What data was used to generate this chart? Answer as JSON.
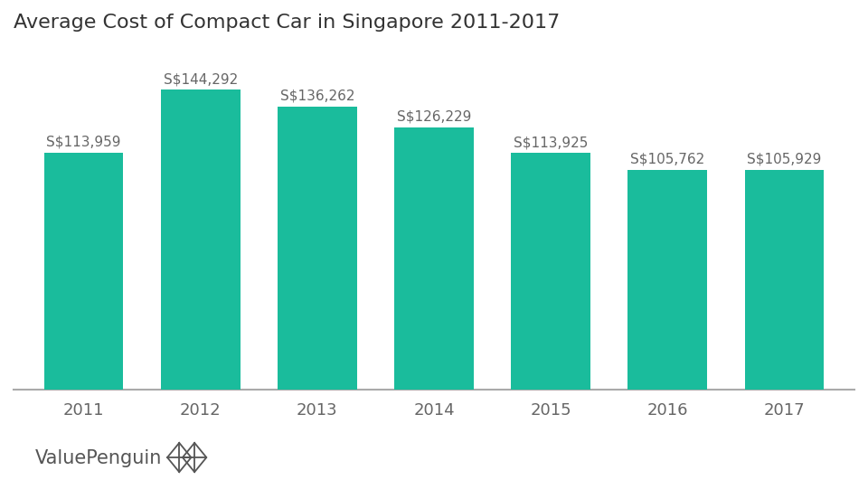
{
  "title": "Average Cost of Compact Car in Singapore 2011-2017",
  "title_fontsize": 16,
  "years": [
    "2011",
    "2012",
    "2013",
    "2014",
    "2015",
    "2016",
    "2017"
  ],
  "values": [
    113959,
    144292,
    136262,
    126229,
    113925,
    105762,
    105929
  ],
  "labels": [
    "S$113,959",
    "S$144,292",
    "S$136,262",
    "S$126,229",
    "S$113,925",
    "S$105,762",
    "S$105,929"
  ],
  "bar_color": "#1ABC9C",
  "label_color": "#666666",
  "label_fontsize": 11,
  "xtick_fontsize": 13,
  "background_color": "#ffffff",
  "bar_width": 0.68,
  "ylim_max": 165000,
  "watermark": "ValuePenguin",
  "watermark_fontsize": 15,
  "watermark_color": "#555555",
  "title_color": "#333333",
  "spine_color": "#aaaaaa"
}
